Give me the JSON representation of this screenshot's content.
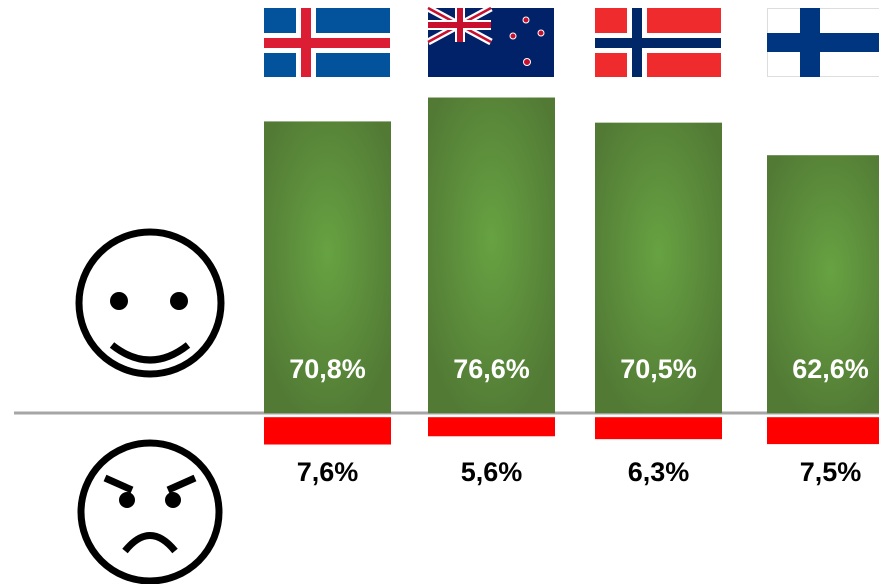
{
  "chart_data": {
    "type": "bar",
    "categories": [
      null,
      null,
      null,
      null
    ],
    "series": [
      {
        "color": "#5d913b",
        "values": [
          70.8,
          76.6,
          70.5,
          62.6
        ],
        "value_labels": [
          "70,8%",
          "76,6%",
          "70,5%",
          "62,6%"
        ]
      },
      {
        "color": "#ff0000",
        "values": [
          7.6,
          5.6,
          6.3,
          7.5
        ],
        "value_labels": [
          "7,6%",
          "5,6%",
          "6,3%",
          "7,5%"
        ]
      }
    ],
    "ylim": [
      -10,
      80
    ]
  }
}
